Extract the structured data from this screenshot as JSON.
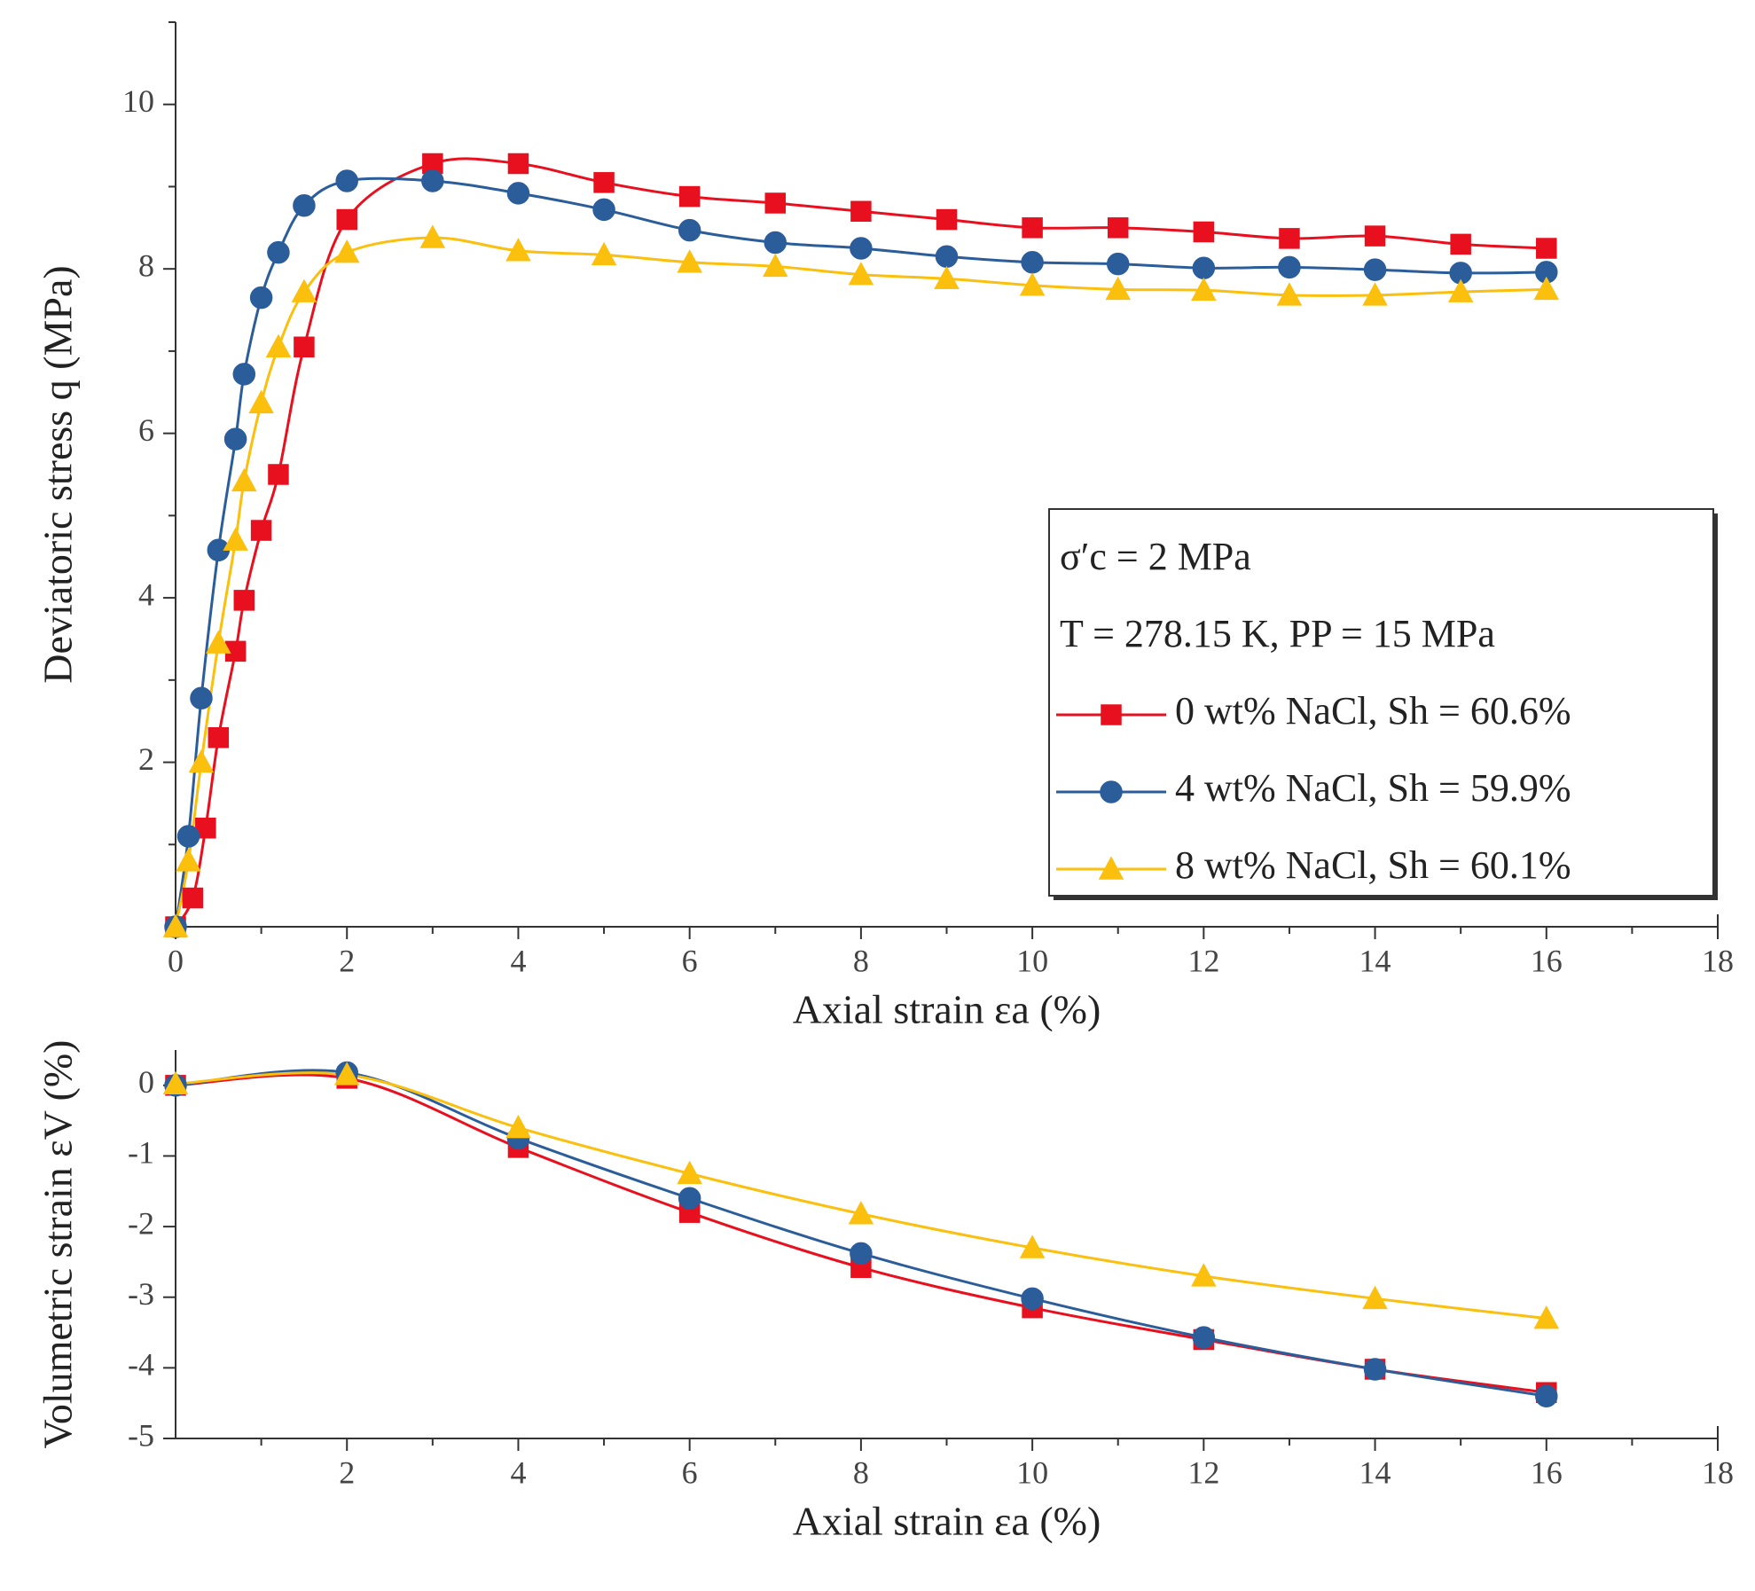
{
  "chart_data": [
    {
      "type": "line",
      "y_label": "Deviatoric stress q (MPa)",
      "x_label": "Axial strain εa (%)",
      "xlim": [
        0,
        18
      ],
      "xticks": [
        0,
        2,
        4,
        6,
        8,
        10,
        12,
        14,
        16,
        18
      ],
      "xminorticks": [
        1,
        3,
        5,
        7,
        9,
        11,
        13,
        15,
        17
      ],
      "ylim": [
        0,
        11
      ],
      "yticks": [
        2,
        4,
        6,
        8,
        10
      ],
      "yminorticks": [
        1,
        3,
        5,
        7,
        9,
        11
      ],
      "legend": "lower right",
      "annotations": [
        "σ′c = 2 MPa",
        "T = 278.15 K, PP = 15 MPa"
      ],
      "series": [
        {
          "name": "0 wt% NaCl, Sh = 60.6%",
          "color": "#e8101e",
          "marker": "square",
          "x": [
            0,
            0.2,
            0.35,
            0.5,
            0.7,
            0.8,
            1.0,
            1.2,
            1.5,
            2,
            3,
            4,
            5,
            6,
            7,
            8,
            9,
            10,
            11,
            12,
            13,
            14,
            15,
            16
          ],
          "values": [
            0,
            0.35,
            1.2,
            2.3,
            3.35,
            3.97,
            4.82,
            5.5,
            7.05,
            8.6,
            9.28,
            9.28,
            9.05,
            8.88,
            8.8,
            8.7,
            8.6,
            8.5,
            8.5,
            8.45,
            8.37,
            8.4,
            8.3,
            8.25
          ]
        },
        {
          "name": "4 wt% NaCl, Sh = 59.9%",
          "color": "#2b5d9b",
          "marker": "circle",
          "x": [
            0,
            0.15,
            0.3,
            0.5,
            0.7,
            0.8,
            1.0,
            1.2,
            1.5,
            2,
            3,
            4,
            5,
            6,
            7,
            8,
            9,
            10,
            11,
            12,
            13,
            14,
            15,
            16
          ],
          "values": [
            0,
            1.1,
            2.78,
            4.58,
            5.93,
            6.72,
            7.65,
            8.2,
            8.77,
            9.07,
            9.07,
            8.92,
            8.72,
            8.47,
            8.32,
            8.25,
            8.15,
            8.08,
            8.06,
            8.01,
            8.02,
            7.99,
            7.95,
            7.96
          ]
        },
        {
          "name": "8 wt% NaCl, Sh = 60.1%",
          "color": "#fbbf0e",
          "marker": "triangle",
          "x": [
            0,
            0.15,
            0.3,
            0.5,
            0.7,
            0.8,
            1.0,
            1.2,
            1.5,
            2,
            3,
            4,
            5,
            6,
            7,
            8,
            9,
            10,
            11,
            12,
            13,
            14,
            15,
            16
          ],
          "values": [
            0,
            0.8,
            2.0,
            3.45,
            4.7,
            5.42,
            6.37,
            7.05,
            7.72,
            8.2,
            8.38,
            8.22,
            8.17,
            8.08,
            8.03,
            7.93,
            7.88,
            7.8,
            7.75,
            7.74,
            7.68,
            7.68,
            7.72,
            7.75
          ]
        }
      ]
    },
    {
      "type": "line",
      "y_label": "Volumetric strain εV (%)",
      "x_label": "Axial strain εa (%)",
      "xlim": [
        0,
        18
      ],
      "xticks": [
        2,
        4,
        6,
        8,
        10,
        12,
        14,
        16,
        18
      ],
      "xminorticks": [
        1,
        3,
        5,
        7,
        9,
        11,
        13,
        15,
        17
      ],
      "ylim": [
        -5,
        0.5
      ],
      "yticks": [
        0,
        -1,
        -2,
        -3,
        -4,
        -5
      ],
      "series": [
        {
          "color": "#e8101e",
          "marker": "square",
          "x": [
            0,
            2,
            4,
            6,
            8,
            10,
            12,
            14,
            16
          ],
          "values": [
            0,
            0.1,
            -0.88,
            -1.8,
            -2.58,
            -3.15,
            -3.6,
            -4.02,
            -4.35
          ]
        },
        {
          "color": "#2b5d9b",
          "marker": "circle",
          "x": [
            0,
            2,
            4,
            6,
            8,
            10,
            12,
            14,
            16
          ],
          "values": [
            0,
            0.18,
            -0.75,
            -1.6,
            -2.38,
            -3.02,
            -3.57,
            -4.02,
            -4.4
          ]
        },
        {
          "color": "#fbbf0e",
          "marker": "triangle",
          "x": [
            0,
            2,
            4,
            6,
            8,
            10,
            12,
            14,
            16
          ],
          "values": [
            0.02,
            0.15,
            -0.6,
            -1.25,
            -1.82,
            -2.3,
            -2.7,
            -3.02,
            -3.3
          ]
        }
      ]
    }
  ]
}
